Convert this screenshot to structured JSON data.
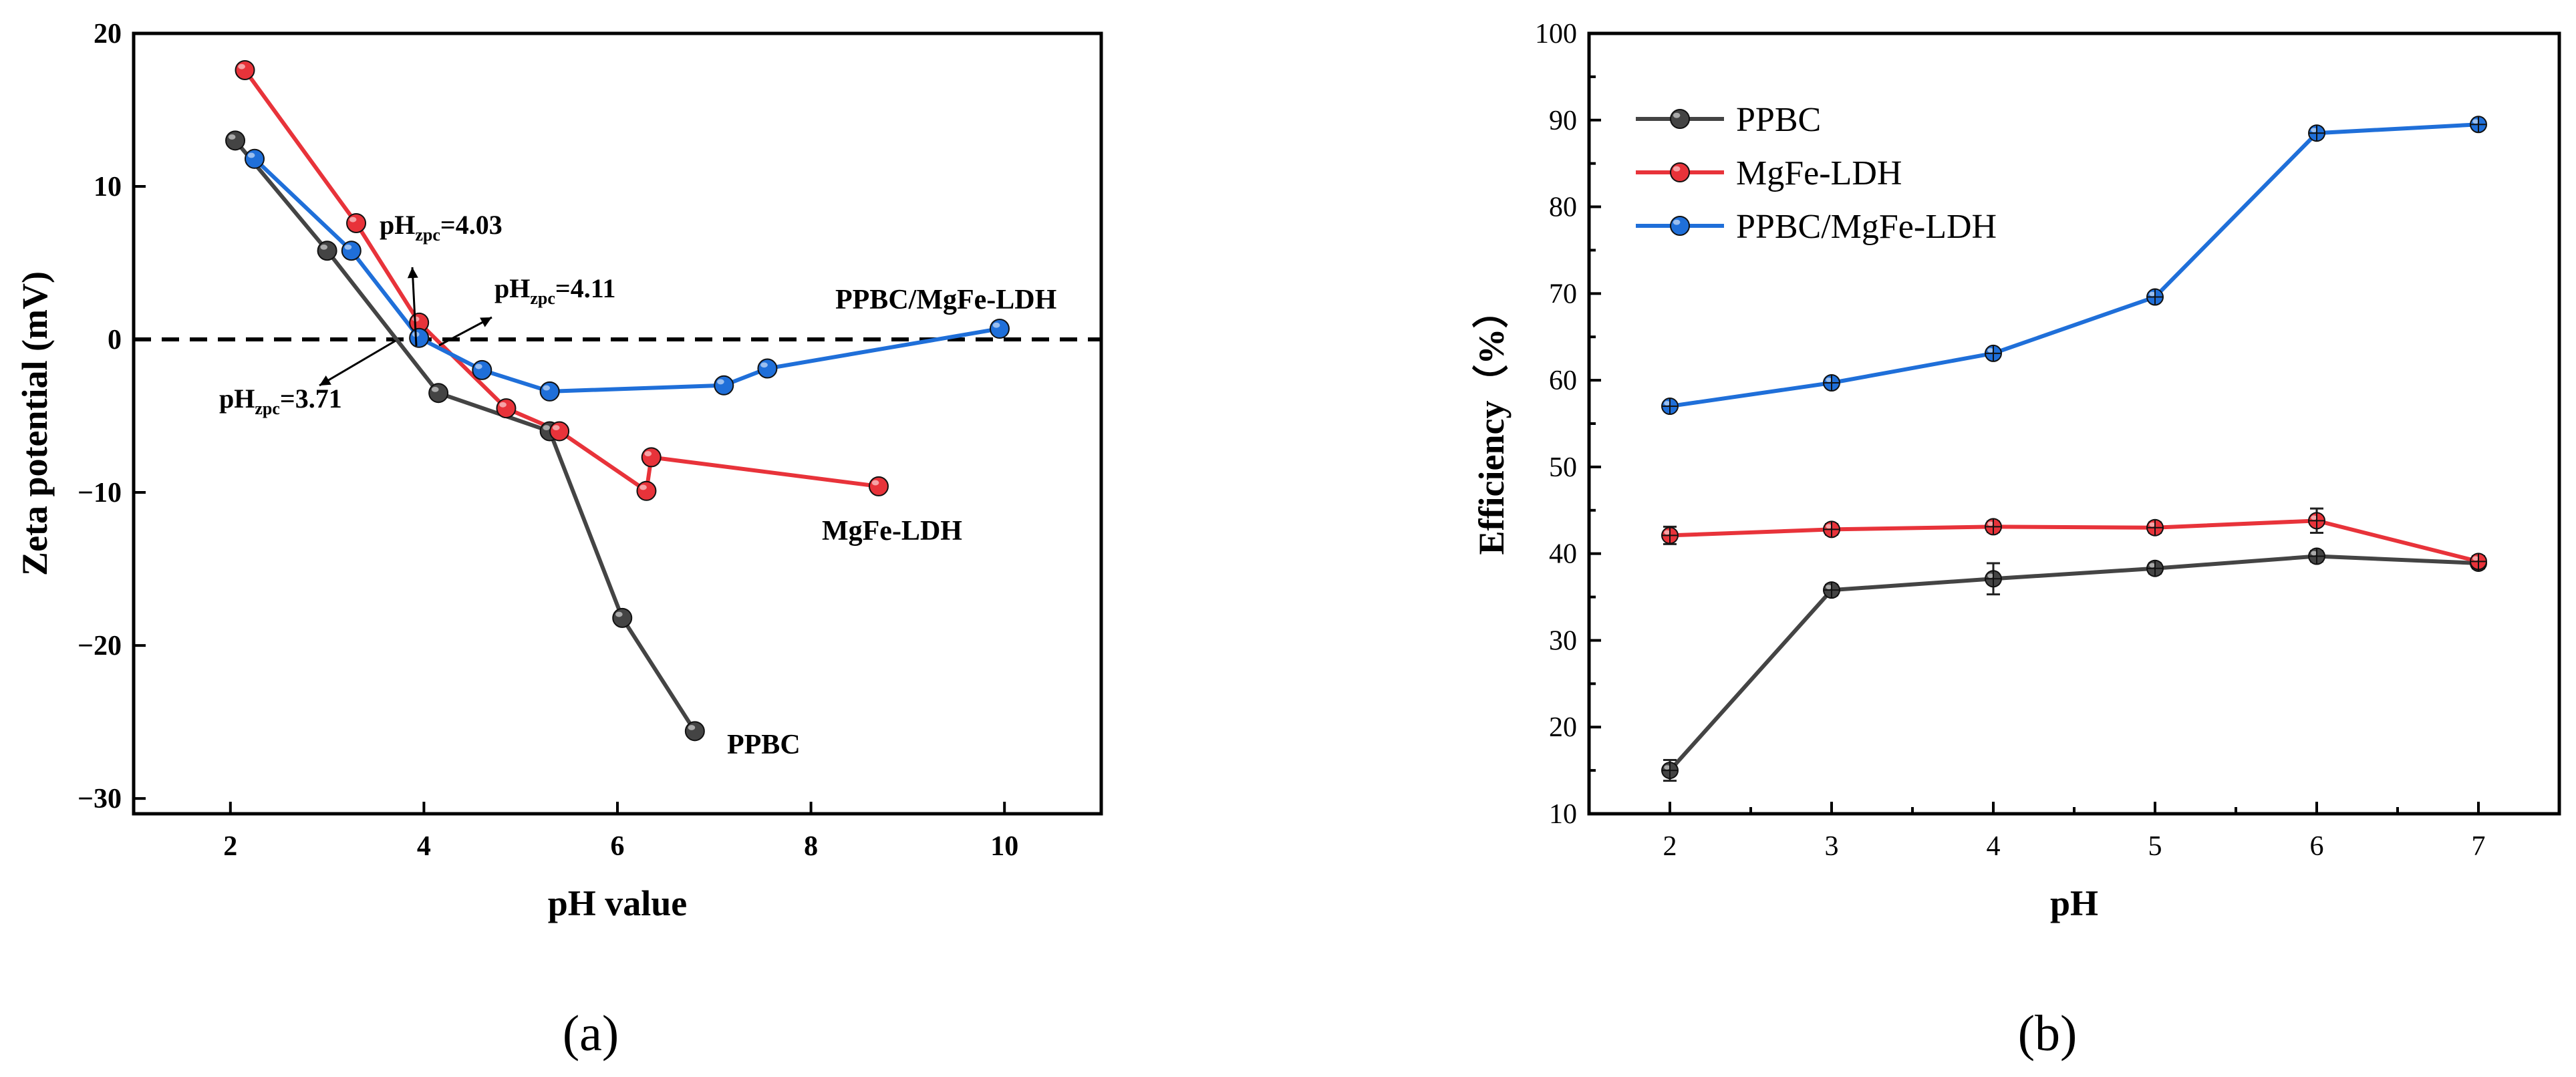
{
  "chart_data": [
    {
      "type": "line",
      "panel_label": "(a)",
      "xlabel": "pH value",
      "ylabel": "Zeta potential (mV)",
      "xlim": [
        1,
        11
      ],
      "ylim": [
        -31,
        20
      ],
      "xticks": [
        2,
        4,
        6,
        8,
        10
      ],
      "yticks": [
        -30,
        -20,
        -10,
        0,
        10,
        20
      ],
      "tick_labels_x": [
        "2",
        "4",
        "6",
        "8",
        "10"
      ],
      "tick_labels_y": [
        "−30",
        "−20",
        "−10",
        "0",
        "10",
        "20"
      ],
      "reference_line": {
        "y": 0,
        "style": "dashed"
      },
      "series": [
        {
          "name": "PPBC",
          "color": "#444444",
          "x": [
            2.05,
            3.0,
            4.15,
            5.3,
            6.05,
            6.8
          ],
          "y": [
            13.0,
            5.8,
            -3.5,
            -6.0,
            -18.2,
            -25.6
          ]
        },
        {
          "name": "MgFe-LDH",
          "color": "#e8333a",
          "x": [
            2.15,
            3.3,
            3.95,
            4.85,
            5.4,
            6.3,
            6.35,
            8.7
          ],
          "y": [
            17.6,
            7.6,
            1.1,
            -4.5,
            -6.0,
            -9.9,
            -7.7,
            -9.6
          ]
        },
        {
          "name": "PPBC/MgFe-LDH",
          "color": "#1f6fd9",
          "x": [
            2.25,
            3.25,
            3.95,
            4.6,
            5.3,
            7.1,
            7.55,
            9.95
          ],
          "y": [
            11.8,
            5.8,
            0.1,
            -2.0,
            -3.4,
            -3.0,
            -1.9,
            0.7
          ]
        }
      ],
      "annotations": [
        {
          "text": "pH",
          "sub": "zpc",
          "suffix": "=4.03"
        },
        {
          "text": "pH",
          "sub": "zpc",
          "suffix": "=4.11"
        },
        {
          "text": "pH",
          "sub": "zpc",
          "suffix": "=3.71"
        }
      ],
      "series_labels": [
        "PPBC/MgFe-LDH",
        "MgFe-LDH",
        "PPBC"
      ]
    },
    {
      "type": "line",
      "panel_label": "(b)",
      "xlabel": "pH",
      "ylabel": "Efficiency（%）",
      "xlim": [
        1.5,
        7.5
      ],
      "ylim": [
        10,
        100
      ],
      "xticks": [
        2,
        3,
        4,
        5,
        6,
        7
      ],
      "yticks": [
        10,
        20,
        30,
        40,
        50,
        60,
        70,
        80,
        90,
        100
      ],
      "tick_labels_x": [
        "2",
        "3",
        "4",
        "5",
        "6",
        "7"
      ],
      "tick_labels_y": [
        "10",
        "20",
        "30",
        "40",
        "50",
        "60",
        "70",
        "80",
        "90",
        "100"
      ],
      "legend_position": "top-left",
      "series": [
        {
          "name": "PPBC",
          "color": "#444444",
          "x": [
            2,
            3,
            4,
            5,
            6,
            7
          ],
          "y": [
            15.0,
            35.8,
            37.1,
            38.3,
            39.7,
            38.9
          ],
          "err": [
            1.2,
            0.6,
            1.8,
            0.6,
            0.6,
            0.6
          ]
        },
        {
          "name": "MgFe-LDH",
          "color": "#e8333a",
          "x": [
            2,
            3,
            4,
            5,
            6,
            7
          ],
          "y": [
            42.1,
            42.8,
            43.1,
            43.0,
            43.8,
            39.1
          ],
          "err": [
            1.0,
            0.6,
            0.6,
            0.6,
            1.4,
            0.6
          ]
        },
        {
          "name": "PPBC/MgFe-LDH",
          "color": "#1f6fd9",
          "x": [
            2,
            3,
            4,
            5,
            6,
            7
          ],
          "y": [
            57.0,
            59.7,
            63.1,
            69.6,
            88.5,
            89.5
          ],
          "err": [
            0.5,
            0.5,
            0.5,
            0.5,
            0.5,
            0.5
          ]
        }
      ]
    }
  ]
}
